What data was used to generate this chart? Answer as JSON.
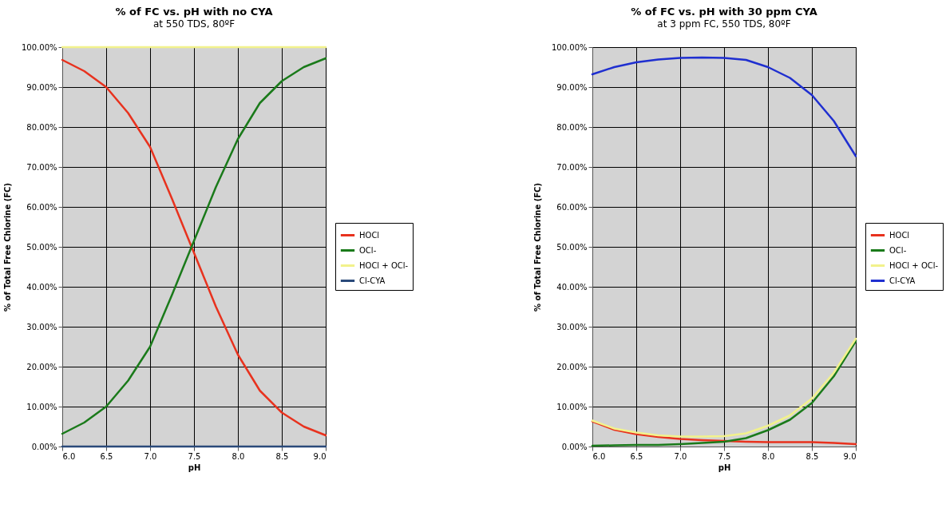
{
  "chart_data": [
    {
      "type": "line",
      "title": "% of FC vs. pH with no CYA",
      "subtitle": "at 550 TDS, 80ºF",
      "xlabel": "pH",
      "ylabel": "% of Total Free Chlorine (FC)",
      "x": [
        6.0,
        6.25,
        6.5,
        6.75,
        7.0,
        7.25,
        7.5,
        7.75,
        8.0,
        8.25,
        8.5,
        8.75,
        9.0
      ],
      "series": [
        {
          "name": "HOCl",
          "color": "#e8321e",
          "values": [
            96.8,
            94,
            90,
            83.5,
            75,
            62,
            48.5,
            35,
            23,
            14,
            8.5,
            5,
            2.8
          ]
        },
        {
          "name": "OCl-",
          "color": "#1a7a1a",
          "values": [
            3.2,
            6,
            10,
            16.5,
            25,
            38,
            51.5,
            65,
            77,
            86,
            91.5,
            95,
            97.2
          ]
        },
        {
          "name": "HOCl + OCl-",
          "color": "#f2f28c",
          "values": [
            100,
            100,
            100,
            100,
            100,
            100,
            100,
            100,
            100,
            100,
            100,
            100,
            100
          ]
        },
        {
          "name": "Cl-CYA",
          "color": "#2a4a7a",
          "values": [
            0,
            0,
            0,
            0,
            0,
            0,
            0,
            0,
            0,
            0,
            0,
            0,
            0
          ]
        }
      ],
      "xlim": [
        6,
        9
      ],
      "ylim": [
        0,
        100
      ],
      "xticks": [
        {
          "value": 6,
          "label": "6.0"
        },
        {
          "value": 6.5,
          "label": "6.5"
        },
        {
          "value": 7,
          "label": "7.0"
        },
        {
          "value": 7.5,
          "label": "7.5"
        },
        {
          "value": 8,
          "label": "8.0"
        },
        {
          "value": 8.5,
          "label": "8.5"
        },
        {
          "value": 9,
          "label": "9.0"
        }
      ],
      "yticks": [
        {
          "value": 0,
          "label": "0.00%"
        },
        {
          "value": 10,
          "label": "10.00%"
        },
        {
          "value": 20,
          "label": "20.00%"
        },
        {
          "value": 30,
          "label": "30.00%"
        },
        {
          "value": 40,
          "label": "40.00%"
        },
        {
          "value": 50,
          "label": "50.00%"
        },
        {
          "value": 60,
          "label": "60.00%"
        },
        {
          "value": 70,
          "label": "70.00%"
        },
        {
          "value": 80,
          "label": "80.00%"
        },
        {
          "value": 90,
          "label": "90.00%"
        },
        {
          "value": 100,
          "label": "100.00%"
        }
      ],
      "grid": true,
      "legend": "right"
    },
    {
      "type": "line",
      "title": "% of FC vs. pH with 30 ppm CYA",
      "subtitle": "at 3 ppm FC, 550 TDS, 80ºF",
      "xlabel": "pH",
      "ylabel": "% of Total Free Chlorine (FC)",
      "x": [
        6.0,
        6.25,
        6.5,
        6.75,
        7.0,
        7.25,
        7.5,
        7.75,
        8.0,
        8.25,
        8.5,
        8.75,
        9.0
      ],
      "series": [
        {
          "name": "HOCl",
          "color": "#e8321e",
          "values": [
            6.3,
            4.2,
            3.1,
            2.4,
            1.9,
            1.6,
            1.4,
            1.2,
            1.1,
            1.1,
            1.1,
            0.9,
            0.6
          ]
        },
        {
          "name": "OCl-",
          "color": "#1a7a1a",
          "values": [
            0.2,
            0.3,
            0.4,
            0.4,
            0.6,
            0.9,
            1.2,
            2.1,
            4.1,
            6.7,
            10.9,
            17.6,
            26.4
          ]
        },
        {
          "name": "HOCl + OCl-",
          "color": "#f2f28c",
          "values": [
            6.5,
            4.5,
            3.5,
            2.8,
            2.5,
            2.5,
            2.6,
            3.3,
            5.2,
            7.8,
            12,
            18.5,
            27
          ]
        },
        {
          "name": "Cl-CYA",
          "color": "#1f2fd0",
          "values": [
            93.2,
            95,
            96.2,
            96.9,
            97.3,
            97.4,
            97.3,
            96.8,
            95,
            92.3,
            88,
            81.5,
            72.7
          ]
        }
      ],
      "xlim": [
        6,
        9
      ],
      "ylim": [
        0,
        100
      ],
      "xticks": [
        {
          "value": 6,
          "label": "6.0"
        },
        {
          "value": 6.5,
          "label": "6.5"
        },
        {
          "value": 7,
          "label": "7.0"
        },
        {
          "value": 7.5,
          "label": "7.5"
        },
        {
          "value": 8,
          "label": "8.0"
        },
        {
          "value": 8.5,
          "label": "8.5"
        },
        {
          "value": 9,
          "label": "9.0"
        }
      ],
      "yticks": [
        {
          "value": 0,
          "label": "0.00%"
        },
        {
          "value": 10,
          "label": "10.00%"
        },
        {
          "value": 20,
          "label": "20.00%"
        },
        {
          "value": 30,
          "label": "30.00%"
        },
        {
          "value": 40,
          "label": "40.00%"
        },
        {
          "value": 50,
          "label": "50.00%"
        },
        {
          "value": 60,
          "label": "60.00%"
        },
        {
          "value": 70,
          "label": "70.00%"
        },
        {
          "value": 80,
          "label": "80.00%"
        },
        {
          "value": 90,
          "label": "90.00%"
        },
        {
          "value": 100,
          "label": "100.00%"
        }
      ],
      "grid": true,
      "legend": "right"
    }
  ]
}
